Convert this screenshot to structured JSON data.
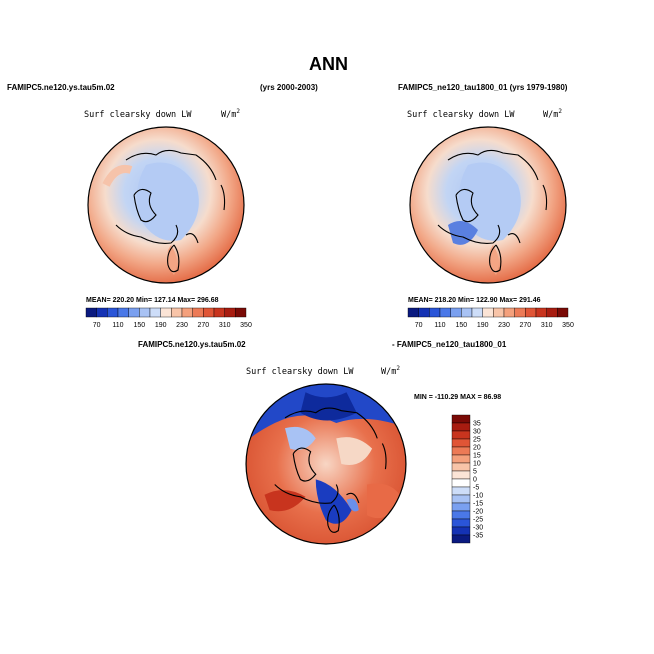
{
  "page_title": "ANN",
  "panel1": {
    "case": "FAMIPC5.ne120.ys.tau5m.02",
    "years": "(yrs 2000-2003)",
    "variable": "Surf clearsky down LW",
    "units": "W/m",
    "units_exp": "2",
    "stats": "MEAN= 220.20   Min= 127.14   Max= 296.68"
  },
  "panel2": {
    "case": "FAMIPC5_ne120_tau1800_01 (yrs 1979-1980)",
    "variable": "Surf clearsky down LW",
    "units": "W/m",
    "units_exp": "2",
    "stats": "MEAN= 218.20   Min= 122.90   Max= 291.46"
  },
  "panel3": {
    "case_left": "FAMIPC5.ne120.ys.tau5m.02",
    "case_right": "- FAMIPC5_ne120_tau1800_01",
    "variable": "Surf clearsky down LW",
    "units": "W/m",
    "units_exp": "2",
    "minmax": "MIN = -110.29  MAX =  86.98"
  },
  "colorbar_abs": {
    "labels": [
      "70",
      "110",
      "150",
      "190",
      "230",
      "270",
      "310",
      "350"
    ],
    "colors": [
      "#0a1a80",
      "#1432b4",
      "#2a55d8",
      "#4a78e8",
      "#7aa0f0",
      "#a8c2f4",
      "#cdddf8",
      "#fbe4d6",
      "#f8c4a8",
      "#f4a07c",
      "#ec7a56",
      "#e05536",
      "#c8341e",
      "#a81c10",
      "#7a0a06"
    ]
  },
  "colorbar_diff": {
    "labels": [
      "35",
      "30",
      "25",
      "20",
      "15",
      "10",
      "5",
      "0",
      "-5",
      "-10",
      "-15",
      "-20",
      "-25",
      "-30",
      "-35"
    ],
    "colors": [
      "#7a0a06",
      "#a81c10",
      "#c8341e",
      "#e05536",
      "#ec7a56",
      "#f4a07c",
      "#f8c4a8",
      "#fbe4d6",
      "#ffffff",
      "#cdddf8",
      "#a8c2f4",
      "#7aa0f0",
      "#4a78e8",
      "#2a55d8",
      "#1432b4",
      "#0a1a80"
    ]
  }
}
